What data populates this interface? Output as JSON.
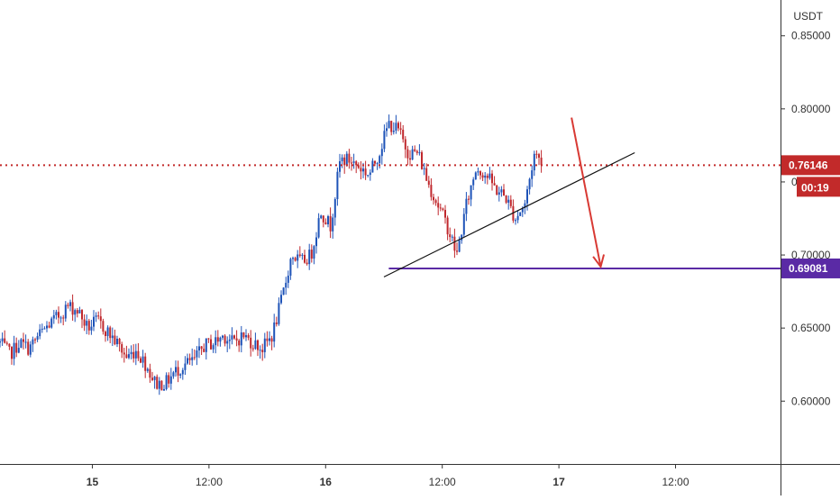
{
  "chart_data": {
    "type": "candlestick",
    "currency": "USDT",
    "y_ticks": [
      "0.85000",
      "0.80000",
      "0.75000",
      "0.70000",
      "0.65000",
      "0.60000"
    ],
    "y_tick_values": [
      0.85,
      0.8,
      0.75,
      0.7,
      0.65,
      0.6
    ],
    "x_ticks": [
      "15",
      "12:00",
      "16",
      "12:00",
      "17",
      "12:00"
    ],
    "x_tick_hours": [
      24,
      36,
      48,
      60,
      72,
      84
    ],
    "ylim": [
      0.557,
      0.8745
    ],
    "xlim_hours": [
      14.5,
      94.8
    ],
    "last_price": {
      "label": "0.76146",
      "value": 0.76146,
      "countdown": "00:19"
    },
    "support_level": {
      "label": "0.69081",
      "value": 0.69081,
      "from_hour": 54.5
    },
    "price_path": [
      [
        14.5,
        0.64
      ],
      [
        15.5,
        0.632
      ],
      [
        16.5,
        0.64
      ],
      [
        17.5,
        0.636
      ],
      [
        18.5,
        0.645
      ],
      [
        19.5,
        0.652
      ],
      [
        20.5,
        0.658
      ],
      [
        21.5,
        0.665
      ],
      [
        22.5,
        0.662
      ],
      [
        23.5,
        0.65
      ],
      [
        24.5,
        0.655
      ],
      [
        25.5,
        0.648
      ],
      [
        26.5,
        0.64
      ],
      [
        27.5,
        0.63
      ],
      [
        28.5,
        0.635
      ],
      [
        29.5,
        0.625
      ],
      [
        30.5,
        0.612
      ],
      [
        31.5,
        0.612
      ],
      [
        32.5,
        0.62
      ],
      [
        33.5,
        0.625
      ],
      [
        34.5,
        0.628
      ],
      [
        35.5,
        0.638
      ],
      [
        36.5,
        0.64
      ],
      [
        37.5,
        0.645
      ],
      [
        38.5,
        0.64
      ],
      [
        39.5,
        0.645
      ],
      [
        40.5,
        0.64
      ],
      [
        41.5,
        0.636
      ],
      [
        42.5,
        0.645
      ],
      [
        43.5,
        0.67
      ],
      [
        44.5,
        0.7
      ],
      [
        45.5,
        0.695
      ],
      [
        46.5,
        0.7
      ],
      [
        47.5,
        0.73
      ],
      [
        48.5,
        0.72
      ],
      [
        49.5,
        0.765
      ],
      [
        50.5,
        0.765
      ],
      [
        51.5,
        0.76
      ],
      [
        52.5,
        0.755
      ],
      [
        53.5,
        0.77
      ],
      [
        54.5,
        0.79
      ],
      [
        55.5,
        0.785
      ],
      [
        56.5,
        0.77
      ],
      [
        57.5,
        0.77
      ],
      [
        58.5,
        0.75
      ],
      [
        59.5,
        0.735
      ],
      [
        60.5,
        0.72
      ],
      [
        61.5,
        0.7
      ],
      [
        62.5,
        0.735
      ],
      [
        63.5,
        0.76
      ],
      [
        64.5,
        0.755
      ],
      [
        65.5,
        0.745
      ],
      [
        66.5,
        0.74
      ],
      [
        67.5,
        0.725
      ],
      [
        68.5,
        0.735
      ],
      [
        69.5,
        0.77
      ],
      [
        70.0,
        0.765
      ],
      [
        70.3,
        0.761
      ]
    ],
    "annotations": {
      "trendline": {
        "from": [
          54.0,
          0.685
        ],
        "to": [
          79.8,
          0.77
        ]
      },
      "arrow": {
        "from": [
          73.3,
          0.794
        ],
        "to": [
          76.3,
          0.692
        ]
      }
    },
    "colors": {
      "up": "#1e53b8",
      "down": "#c0282d",
      "last_price": "#c22a2a",
      "support": "#5a2aa5",
      "trendline": "#111111",
      "arrow": "#d83a34",
      "axis_text": "#333333",
      "axis_line": "#333333"
    }
  }
}
